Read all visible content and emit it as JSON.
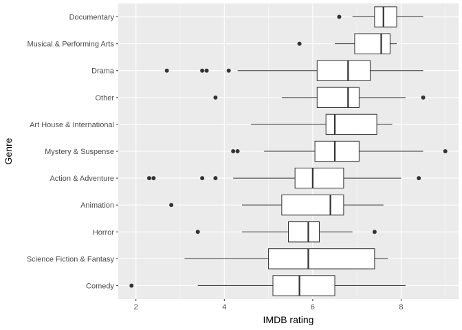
{
  "chart_data": {
    "type": "boxplot",
    "orientation": "horizontal",
    "xlabel": "IMDB rating",
    "ylabel": "Genre",
    "xlim": [
      1.6,
      9.3
    ],
    "x_ticks": [
      2,
      4,
      6,
      8
    ],
    "grid": true,
    "legend": "none",
    "colors": {
      "panel": "#ebebeb",
      "grid_major": "#ffffff",
      "box_fill": "#ffffff",
      "line": "#333333",
      "outlier": "#333333"
    },
    "categories": [
      {
        "name": "Documentary",
        "whisker_low": 6.9,
        "q1": 7.4,
        "median": 7.6,
        "q3": 7.9,
        "whisker_high": 8.5,
        "outliers": [
          6.6
        ]
      },
      {
        "name": "Musical & Performing Arts",
        "whisker_low": 6.5,
        "q1": 6.95,
        "median": 7.55,
        "q3": 7.75,
        "whisker_high": 7.9,
        "outliers": [
          5.7
        ]
      },
      {
        "name": "Drama",
        "whisker_low": 4.3,
        "q1": 6.1,
        "median": 6.8,
        "q3": 7.3,
        "whisker_high": 8.5,
        "outliers": [
          2.7,
          3.5,
          3.6,
          4.1
        ]
      },
      {
        "name": "Other",
        "whisker_low": 5.3,
        "q1": 6.1,
        "median": 6.8,
        "q3": 7.05,
        "whisker_high": 8.1,
        "outliers": [
          3.8,
          8.5
        ]
      },
      {
        "name": "Art House & International",
        "whisker_low": 4.6,
        "q1": 6.3,
        "median": 6.5,
        "q3": 7.45,
        "whisker_high": 7.8,
        "outliers": []
      },
      {
        "name": "Mystery & Suspense",
        "whisker_low": 4.9,
        "q1": 6.05,
        "median": 6.5,
        "q3": 7.05,
        "whisker_high": 8.5,
        "outliers": [
          4.2,
          4.3,
          9.0
        ]
      },
      {
        "name": "Action & Adventure",
        "whisker_low": 4.2,
        "q1": 5.6,
        "median": 6.0,
        "q3": 6.7,
        "whisker_high": 8.0,
        "outliers": [
          2.3,
          2.4,
          3.5,
          3.8,
          8.4
        ]
      },
      {
        "name": "Animation",
        "whisker_low": 4.4,
        "q1": 5.3,
        "median": 6.4,
        "q3": 6.7,
        "whisker_high": 7.6,
        "outliers": [
          2.8
        ]
      },
      {
        "name": "Horror",
        "whisker_low": 4.4,
        "q1": 5.45,
        "median": 5.9,
        "q3": 6.15,
        "whisker_high": 6.9,
        "outliers": [
          3.4,
          7.4
        ]
      },
      {
        "name": "Science Fiction & Fantasy",
        "whisker_low": 3.1,
        "q1": 5.0,
        "median": 5.9,
        "q3": 7.4,
        "whisker_high": 7.7,
        "outliers": []
      },
      {
        "name": "Comedy",
        "whisker_low": 3.4,
        "q1": 5.1,
        "median": 5.7,
        "q3": 6.5,
        "whisker_high": 8.1,
        "outliers": [
          1.9
        ]
      }
    ]
  }
}
